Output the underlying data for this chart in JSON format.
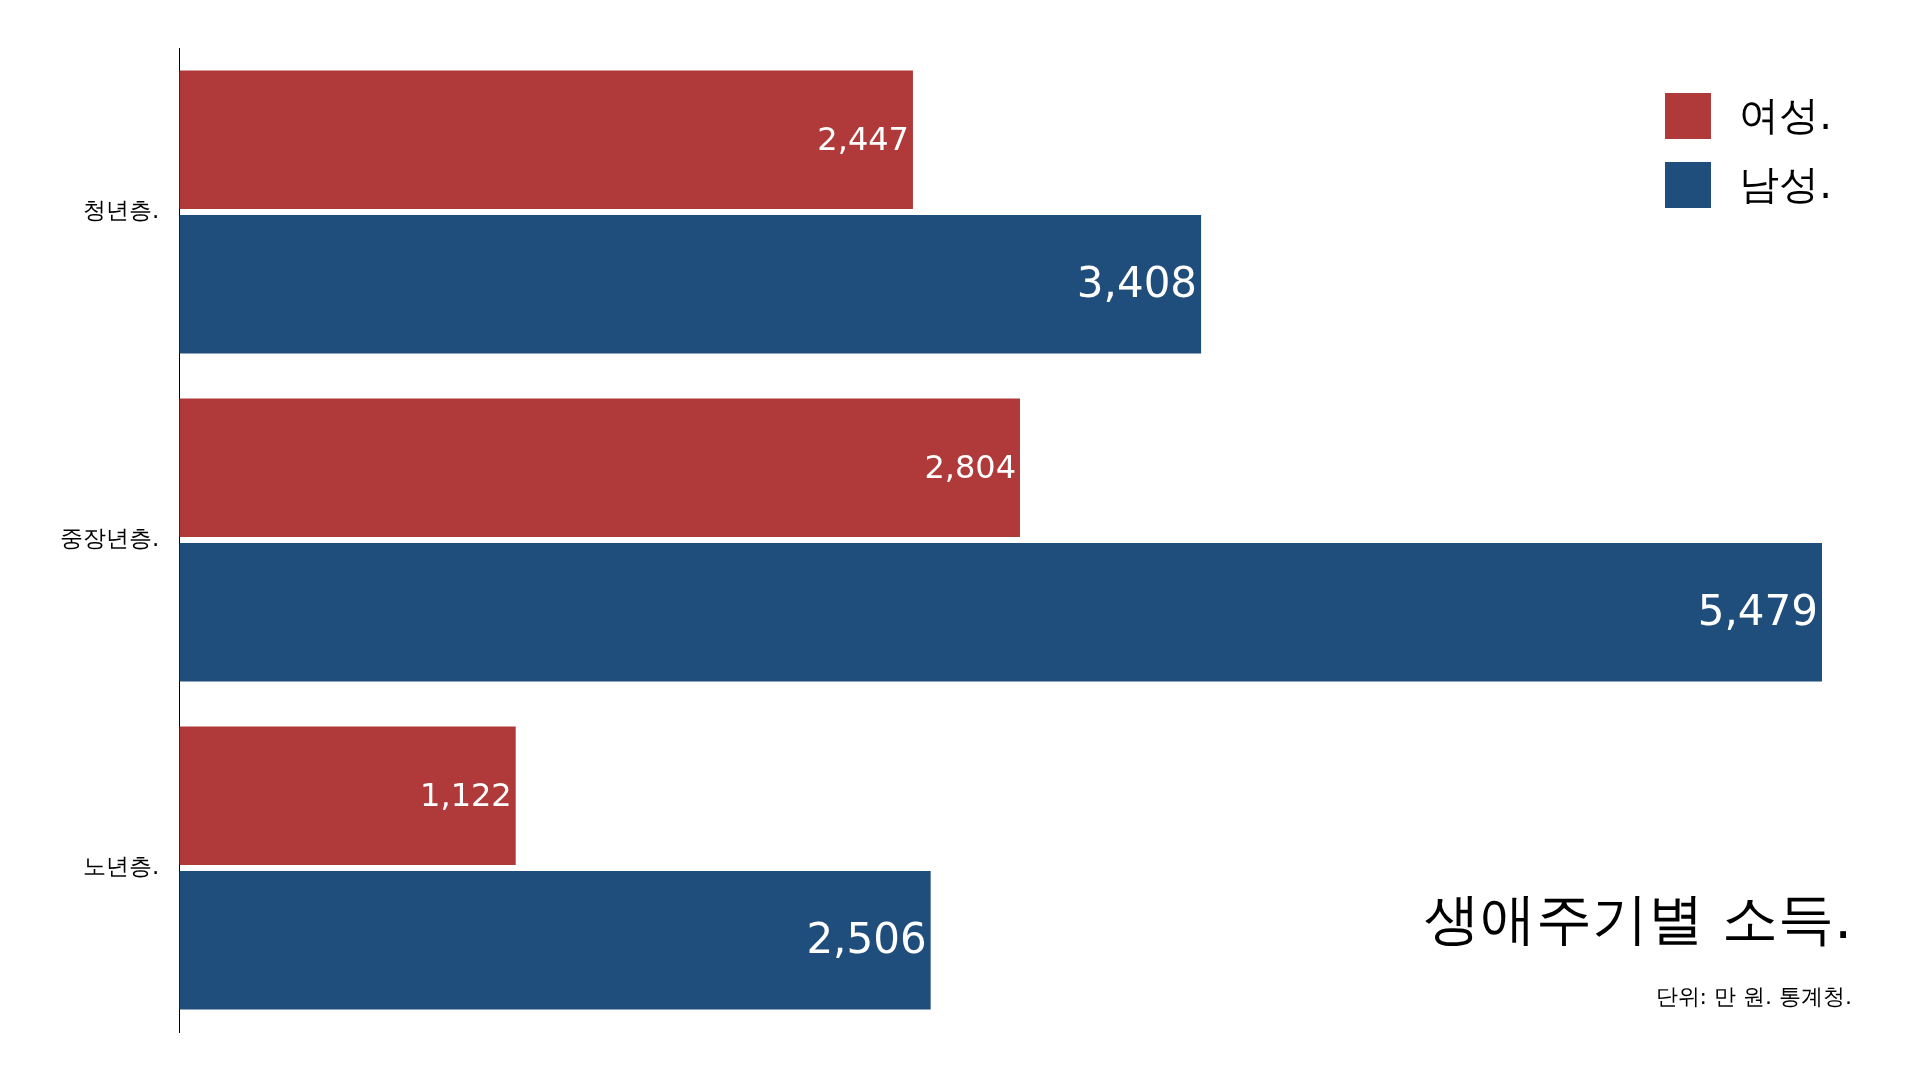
{
  "chart_data": {
    "type": "bar",
    "orientation": "horizontal",
    "title": "생애주기별 소득.",
    "annotations": [
      "단위: 만 원. 통계청."
    ],
    "categories": [
      "청년층.",
      "중장년층.",
      "노년층."
    ],
    "series": [
      {
        "name": "여성.",
        "color": "#b03a3a",
        "values": [
          2447,
          2804,
          1122
        ],
        "value_labels": [
          "2,447",
          "2,804",
          "1,122"
        ]
      },
      {
        "name": "남성.",
        "color": "#1f4e7d",
        "values": [
          3408,
          5479,
          2506
        ],
        "value_labels": [
          "3,408",
          "5,479",
          "2,506"
        ]
      }
    ],
    "legend": "top right",
    "grid": false,
    "tick_labels": "y"
  }
}
